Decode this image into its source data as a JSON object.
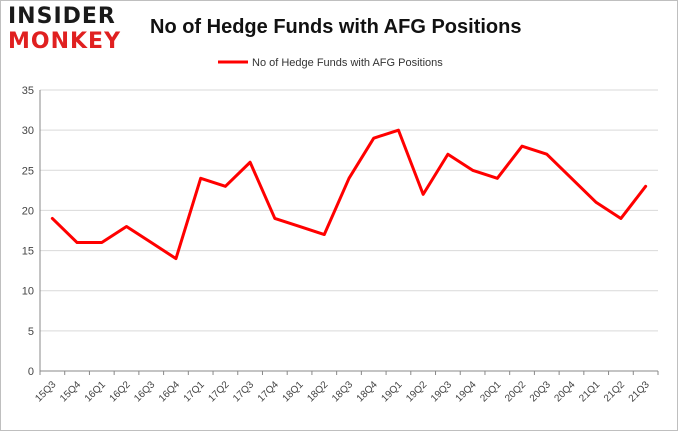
{
  "logo": {
    "line1": "INSIDER",
    "line2": "MONKEY"
  },
  "chart_data": {
    "type": "line",
    "title": "No of Hedge Funds with AFG Positions",
    "categories": [
      "15Q3",
      "15Q4",
      "16Q1",
      "16Q2",
      "16Q3",
      "16Q4",
      "17Q1",
      "17Q2",
      "17Q3",
      "17Q4",
      "18Q1",
      "18Q2",
      "18Q3",
      "18Q4",
      "19Q1",
      "19Q2",
      "19Q3",
      "19Q4",
      "20Q1",
      "20Q2",
      "20Q3",
      "20Q4",
      "21Q1",
      "21Q2",
      "21Q3"
    ],
    "series": [
      {
        "name": "No of Hedge Funds with AFG Positions",
        "values": [
          19,
          16,
          16,
          18,
          16,
          14,
          24,
          23,
          26,
          19,
          18,
          17,
          24,
          29,
          30,
          22,
          27,
          25,
          24,
          28,
          27,
          24,
          21,
          19,
          23
        ]
      }
    ],
    "ylim": [
      0,
      35
    ],
    "yticks": [
      0,
      5,
      10,
      15,
      20,
      25,
      30,
      35
    ],
    "grid": true,
    "legend": "top-center",
    "colors": {
      "line": "#ff0000",
      "grid": "#d9d9d9",
      "axis": "#888888"
    }
  }
}
